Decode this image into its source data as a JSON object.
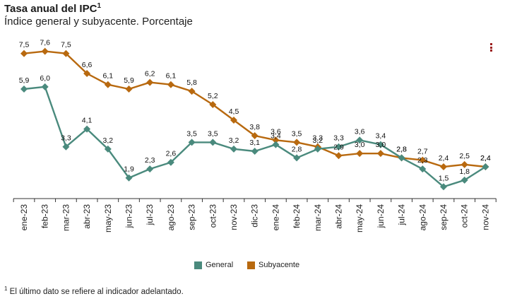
{
  "header": {
    "title": "Tasa anual del IPC",
    "title_sup": "1",
    "subtitle": "Índice general y subyacente. Porcentaje"
  },
  "footnote": {
    "sup": "1",
    "text": "El último dato se refiere al indicador adelantado."
  },
  "legend": {
    "placement": "bottom-center",
    "items": [
      {
        "label": "General",
        "color": "#4a8a7d"
      },
      {
        "label": "Subyacente",
        "color": "#b8690f"
      }
    ]
  },
  "chart_data": {
    "type": "line",
    "categories": [
      "ene-23",
      "feb-23",
      "mar-23",
      "abr-23",
      "may-23",
      "jun-23",
      "jul-23",
      "ago-23",
      "sep-23",
      "oct-23",
      "nov-23",
      "dic-23",
      "ene-24",
      "feb-24",
      "mar-24",
      "abr-24",
      "may-24",
      "jun-24",
      "jul-24",
      "ago-24",
      "sep-24",
      "oct-24",
      "nov-24"
    ],
    "series": [
      {
        "name": "General",
        "color": "#4a8a7d",
        "values": [
          5.9,
          6.0,
          3.3,
          4.1,
          3.2,
          1.9,
          2.3,
          2.6,
          3.5,
          3.5,
          3.2,
          3.1,
          3.4,
          2.8,
          3.2,
          3.3,
          3.6,
          3.4,
          2.8,
          2.3,
          1.5,
          1.8,
          2.4
        ],
        "labels": [
          "5,9",
          "6,0",
          "3,3",
          "4,1",
          "3,2",
          "1,9",
          "2,3",
          "2,6",
          "3,5",
          "3,5",
          "3,2",
          "3,1",
          "3,4",
          "2,8",
          "3,2",
          "3,3",
          "3,6",
          "3,4",
          "2,8",
          "2,3",
          "1,5",
          "1,8",
          "2,4"
        ]
      },
      {
        "name": "Subyacente",
        "color": "#b8690f",
        "values": [
          7.5,
          7.6,
          7.5,
          6.6,
          6.1,
          5.9,
          6.2,
          6.1,
          5.8,
          5.2,
          4.5,
          3.8,
          3.6,
          3.5,
          3.3,
          2.9,
          3.0,
          3.0,
          2.8,
          2.7,
          2.4,
          2.5,
          2.4
        ],
        "labels": [
          "7,5",
          "7,6",
          "7,5",
          "6,6",
          "6,1",
          "5,9",
          "6,2",
          "6,1",
          "5,8",
          "5,2",
          "4,5",
          "3,8",
          "3,6",
          "3,5",
          "3,3",
          "2,9",
          "3,0",
          "3,0",
          "2,8",
          "2,7",
          "2,4",
          "2,5",
          "2,4"
        ]
      }
    ],
    "ylim": [
      1.0,
      8.0
    ],
    "grid": false,
    "xlabel": "",
    "ylabel": ""
  }
}
